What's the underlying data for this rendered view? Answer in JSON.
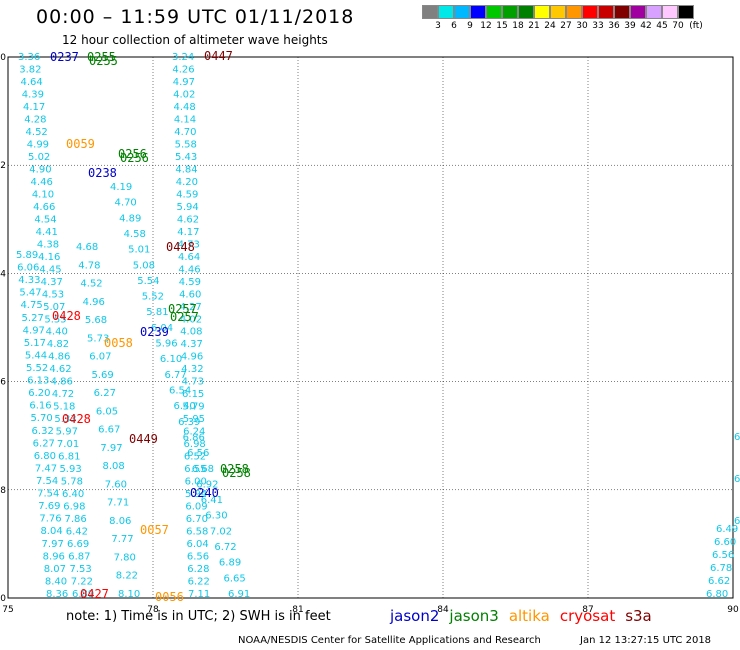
{
  "header": {
    "title": "00:00 – 11:59 UTC 01/11/2018",
    "subtitle": "12 hour collection of altimeter wave heights"
  },
  "color_scale": {
    "unit": "(ft)",
    "labels": [
      "3",
      "6",
      "9",
      "12",
      "15",
      "18",
      "21",
      "24",
      "27",
      "30",
      "33",
      "36",
      "39",
      "42",
      "45",
      "70"
    ],
    "colors": [
      "#808080",
      "#00e8e8",
      "#00b8ff",
      "#0000ff",
      "#00c800",
      "#00a000",
      "#008000",
      "#ffff00",
      "#ffc800",
      "#ff9600",
      "#ff0000",
      "#c80000",
      "#800000",
      "#a000a0",
      "#d8a0ff",
      "#ffc8ff",
      "#000000"
    ]
  },
  "map": {
    "lon_ticks": [
      "75",
      "78",
      "81",
      "84",
      "87",
      "90"
    ],
    "lat_ticks": [
      "0",
      "-2",
      "-4",
      "-6",
      "-8",
      "-10"
    ]
  },
  "footer": {
    "note": "note:  1) Time is in UTC;  2) SWH is in feet",
    "satellites": [
      {
        "name": "jason2",
        "color": "#0000cc"
      },
      {
        "name": "jason3",
        "color": "#008000"
      },
      {
        "name": "altika",
        "color": "#ff9600"
      },
      {
        "name": "cryosat",
        "color": "#ff0000"
      },
      {
        "name": "s3a",
        "color": "#800000"
      }
    ],
    "credit": "NOAA/NESDIS Center for Satellite Applications and Research",
    "timestamp": "Jan 12 13:27:15 UTC 2018"
  },
  "tracks": {
    "track_a": [
      "3.36",
      "3.82",
      "4.64",
      "4.39",
      "4.17",
      "4.28",
      "4.52",
      "4.99",
      "5.02",
      "4.90",
      "4.46",
      "4.10",
      "4.66",
      "4.54",
      "4.41",
      "4.38",
      "4.16",
      "4.45",
      "4.37",
      "4.53",
      "5.07",
      "5.55",
      "4.40",
      "4.82",
      "4.86",
      "4.62",
      "4.86",
      "4.72",
      "5.18",
      "5.33",
      "5.97",
      "7.01",
      "6.81",
      "5.93",
      "5.78",
      "6.40",
      "6.98",
      "7.86",
      "6.42",
      "6.69",
      "6.87",
      "7.53",
      "7.22",
      "6.89"
    ],
    "track_b": [
      "3.24",
      "4.26",
      "4.97",
      "4.02",
      "4.48",
      "4.14",
      "4.70",
      "5.58",
      "5.43",
      "4.84",
      "4.20",
      "4.59",
      "5.94",
      "4.62",
      "4.17",
      "4.73",
      "4.64",
      "4.46",
      "4.59",
      "4.60",
      "4.27",
      "4.02",
      "4.08",
      "4.37",
      "4.96",
      "4.32",
      "4.73",
      "6.15",
      "5.79",
      "5.95",
      "6.24",
      "6.98",
      "6.52",
      "6.55",
      "6.00",
      "5.94",
      "6.09",
      "6.70",
      "6.58",
      "6.04",
      "6.56",
      "6.28",
      "6.22",
      "7.11"
    ],
    "track_c": [
      "4.19",
      "4.70",
      "4.89",
      "4.58",
      "5.01",
      "5.08",
      "5.54",
      "5.52",
      "5.81",
      "6.04",
      "5.96",
      "6.10",
      "6.77",
      "6.54",
      "6.40",
      "6.39",
      "6.86",
      "6.56",
      "6.68",
      "6.92",
      "6.41",
      "6.30",
      "7.02",
      "6.72",
      "6.89",
      "6.65",
      "6.91"
    ],
    "west_col": [
      "5.89",
      "6.06",
      "4.33",
      "5.47",
      "4.75",
      "5.27",
      "4.97",
      "5.17",
      "5.44",
      "5.52",
      "6.13",
      "6.20",
      "6.16",
      "5.70",
      "6.32",
      "6.27",
      "6.80",
      "7.47",
      "7.54",
      "7.54",
      "7.69",
      "7.76",
      "8.04",
      "7.97",
      "8.96",
      "8.07",
      "8.40",
      "8.36"
    ],
    "mid_col": [
      "4.68",
      "4.78",
      "4.52",
      "4.96",
      "5.68",
      "5.73",
      "6.07",
      "5.69",
      "6.27",
      "6.05",
      "6.67",
      "7.97",
      "8.08",
      "7.60",
      "7.71",
      "8.06",
      "7.77",
      "7.80",
      "8.22",
      "8.10"
    ],
    "east_col": [
      "6.49",
      "6.60",
      "6.56",
      "6.78",
      "6.62",
      "6.80"
    ],
    "times": [
      {
        "t": "0237",
        "sat": "jason2"
      },
      {
        "t": "0255",
        "sat": "jason3"
      },
      {
        "t": "0255",
        "sat": "jason3"
      },
      {
        "t": "0447",
        "sat": "s3a"
      },
      {
        "t": "0059",
        "sat": "altika"
      },
      {
        "t": "0256",
        "sat": "jason3"
      },
      {
        "t": "0256",
        "sat": "jason3"
      },
      {
        "t": "0238",
        "sat": "jason2"
      },
      {
        "t": "0448",
        "sat": "s3a"
      },
      {
        "t": "0257",
        "sat": "jason3"
      },
      {
        "t": "0257",
        "sat": "jason3"
      },
      {
        "t": "0428",
        "sat": "cryosat"
      },
      {
        "t": "0239",
        "sat": "jason2"
      },
      {
        "t": "0058",
        "sat": "altika"
      },
      {
        "t": "0428",
        "sat": "cryosat"
      },
      {
        "t": "0449",
        "sat": "s3a"
      },
      {
        "t": "0258",
        "sat": "jason3"
      },
      {
        "t": "0258",
        "sat": "jason3"
      },
      {
        "t": "0240",
        "sat": "jason2"
      },
      {
        "t": "0057",
        "sat": "altika"
      },
      {
        "t": "0427",
        "sat": "cryosat"
      },
      {
        "t": "0056",
        "sat": "altika"
      }
    ]
  }
}
